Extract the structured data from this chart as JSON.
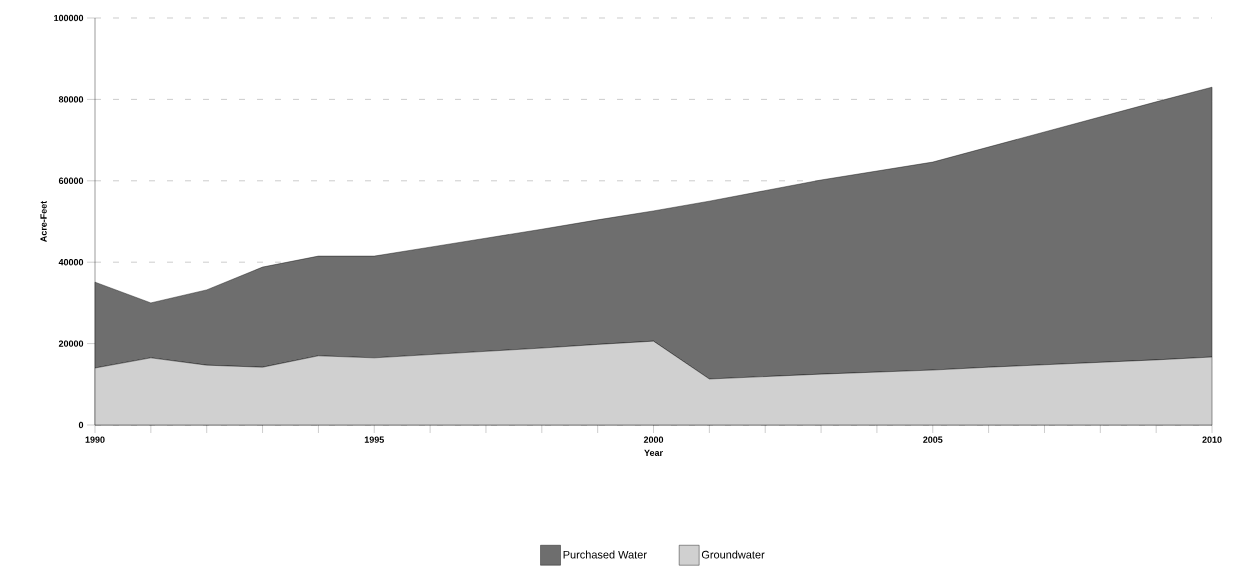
{
  "chart_data": {
    "type": "area",
    "stacked": true,
    "xlabel": "Year",
    "ylabel": "Acre-Feet",
    "x": [
      1990,
      1991,
      1992,
      1993,
      1994,
      1995,
      1996,
      1997,
      1998,
      1999,
      2000,
      2001,
      2002,
      2003,
      2004,
      2005,
      2006,
      2007,
      2008,
      2009,
      2010
    ],
    "series": [
      {
        "name": "Groundwater",
        "color": "#d0d0d0",
        "values": [
          14000,
          16500,
          14700,
          14200,
          17000,
          16500,
          17300,
          18100,
          18900,
          19800,
          20600,
          11300,
          11900,
          12500,
          13000,
          13500,
          14200,
          14800,
          15400,
          16000,
          16700
        ]
      },
      {
        "name": "Purchased Water",
        "color": "#6e6e6e",
        "values": [
          21100,
          13500,
          18500,
          24600,
          24500,
          25000,
          26400,
          27800,
          29200,
          30600,
          32000,
          43700,
          45700,
          47700,
          49400,
          51100,
          54100,
          57200,
          60300,
          63400,
          66300
        ]
      }
    ],
    "xlim": [
      1990,
      2010
    ],
    "ylim": [
      0,
      100000
    ],
    "xticks": [
      1990,
      {
        "value": 1991,
        "label": null
      },
      {
        "value": 1992,
        "label": null
      },
      {
        "value": 1993,
        "label": null
      },
      {
        "value": 1994,
        "label": null
      },
      1995,
      {
        "value": 1996,
        "label": null
      },
      {
        "value": 1997,
        "label": null
      },
      {
        "value": 1998,
        "label": null
      },
      {
        "value": 1999,
        "label": null
      },
      2000,
      {
        "value": 2001,
        "label": null
      },
      {
        "value": 2002,
        "label": null
      },
      {
        "value": 2003,
        "label": null
      },
      {
        "value": 2004,
        "label": null
      },
      2005,
      {
        "value": 2006,
        "label": null
      },
      {
        "value": 2007,
        "label": null
      },
      {
        "value": 2008,
        "label": null
      },
      {
        "value": 2009,
        "label": null
      },
      2010
    ],
    "yticks": [
      0,
      20000,
      40000,
      60000,
      80000,
      100000
    ],
    "grid": "y",
    "legend": "bottom"
  }
}
